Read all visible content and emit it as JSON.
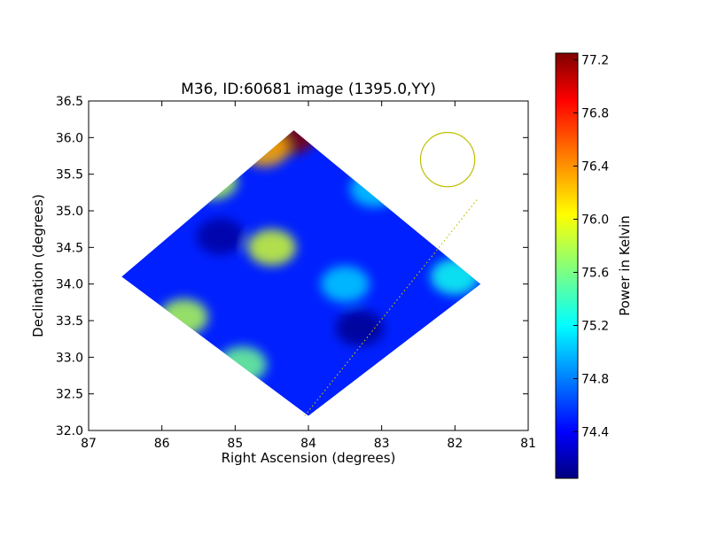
{
  "chart_data": {
    "type": "heatmap",
    "title": "M36, ID:60681 image (1395.0,YY)",
    "xlabel": "Right Ascension (degrees)",
    "ylabel": "Declination (degrees)",
    "xlim": [
      87,
      81
    ],
    "ylim": [
      32.0,
      36.5
    ],
    "x_ticks": [
      "87",
      "86",
      "85",
      "84",
      "83",
      "82",
      "81"
    ],
    "y_ticks": [
      "32.0",
      "32.5",
      "33.0",
      "33.5",
      "34.0",
      "34.5",
      "35.0",
      "35.5",
      "36.0",
      "36.5"
    ],
    "colorbar": {
      "label": "Power in Kelvin",
      "range": [
        74.05,
        77.25
      ],
      "ticks": [
        "74.4",
        "74.8",
        "75.2",
        "75.6",
        "76.0",
        "76.4",
        "76.8",
        "77.2"
      ],
      "colormap": "jet"
    },
    "field": {
      "corners": [
        {
          "ra": 84.2,
          "dec": 36.1
        },
        {
          "ra": 81.65,
          "dec": 34.0
        },
        {
          "ra": 84.0,
          "dec": 32.2
        },
        {
          "ra": 86.55,
          "dec": 34.1
        }
      ],
      "background_value": 74.55,
      "features": [
        {
          "ra": 84.3,
          "dec": 36.1,
          "value": 77.25
        },
        {
          "ra": 84.6,
          "dec": 35.85,
          "value": 76.3
        },
        {
          "ra": 85.3,
          "dec": 35.4,
          "value": 75.8
        },
        {
          "ra": 84.5,
          "dec": 34.5,
          "value": 75.9
        },
        {
          "ra": 85.7,
          "dec": 33.55,
          "value": 75.8
        },
        {
          "ra": 84.9,
          "dec": 32.9,
          "value": 75.6
        },
        {
          "ra": 83.5,
          "dec": 34.0,
          "value": 75.1
        },
        {
          "ra": 82.0,
          "dec": 34.1,
          "value": 75.3
        },
        {
          "ra": 85.2,
          "dec": 34.65,
          "value": 74.15
        },
        {
          "ra": 83.3,
          "dec": 33.4,
          "value": 74.1
        },
        {
          "ra": 83.1,
          "dec": 35.3,
          "value": 75.1
        }
      ]
    },
    "beam_circle": {
      "ra": 82.1,
      "dec": 35.7,
      "radius_deg": 0.37,
      "color": "#bfbf00"
    },
    "dotted_line": {
      "from": {
        "ra": 84.05,
        "dec": 32.2
      },
      "to": {
        "ra": 81.7,
        "dec": 35.15
      },
      "color": "#bfbf00"
    }
  }
}
